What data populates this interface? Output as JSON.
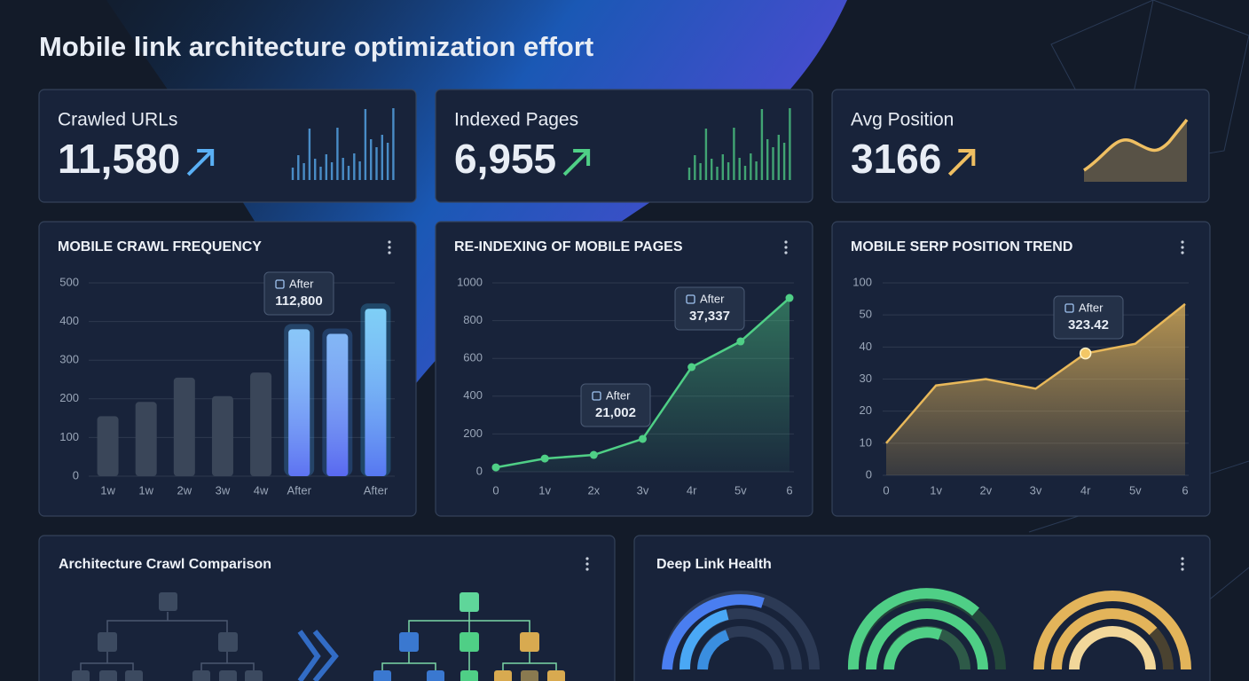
{
  "header": {
    "title": "Mobile link architecture optimization effort"
  },
  "kpis": [
    {
      "label": "Crawled URLs",
      "value": "11,580",
      "color": "#5ab0f5"
    },
    {
      "label": "Indexed Pages",
      "value": "6,955",
      "color": "#4fcf86"
    },
    {
      "label": "Avg Position",
      "value": "3166",
      "color": "#efbf62"
    }
  ],
  "charts": [
    {
      "type": "bar",
      "title": "MOBILE CRAWL FREQUENCY",
      "categories": [
        "1w",
        "1w",
        "2w",
        "3w",
        "4w",
        "After",
        null,
        "After"
      ],
      "values": [
        155,
        192,
        255,
        207,
        268,
        380,
        368,
        433
      ],
      "colors": [
        "#3a4659",
        "#3a4659",
        "#3a4659",
        "#3a4659",
        "#3a4659",
        "#4aa8f5",
        "#3f8ff0",
        "#39b4f2"
      ],
      "ylim": [
        0,
        500
      ],
      "yticks": [
        0,
        100,
        200,
        300,
        400,
        500
      ],
      "grid": true,
      "annotations": [
        {
          "label": "After",
          "value": "112,800"
        }
      ]
    },
    {
      "type": "line",
      "title": "RE-INDEXING OF MOBILE PAGES",
      "categories": [
        "0",
        "1v",
        "2x",
        "3v",
        "4r",
        "5v",
        "6"
      ],
      "values": [
        23,
        70,
        89,
        174,
        554,
        690,
        920
      ],
      "color": "#4fcf86",
      "ylim": [
        0,
        1000
      ],
      "yticks": [
        0,
        200,
        400,
        600,
        800,
        1000
      ],
      "grid": true,
      "annotations": [
        {
          "label": "After",
          "value": "21,002"
        },
        {
          "label": "After",
          "value": "37,337"
        }
      ]
    },
    {
      "type": "area",
      "title": "MOBILE SERP POSITION TREND",
      "categories": [
        "0",
        "1v",
        "2v",
        "3v",
        "4r",
        "5v",
        "6"
      ],
      "values": [
        10,
        28,
        30,
        27,
        38,
        41,
        67
      ],
      "color": "#e8b85a",
      "ylim": [
        0,
        100
      ],
      "yticks": [
        0,
        10,
        20,
        30,
        40,
        50,
        100
      ],
      "grid": true,
      "annotations": [
        {
          "label": "After",
          "value": "323.42"
        }
      ]
    }
  ],
  "panels": [
    {
      "title": "Architecture Crawl Comparison"
    },
    {
      "title": "Deep Link Health"
    }
  ]
}
